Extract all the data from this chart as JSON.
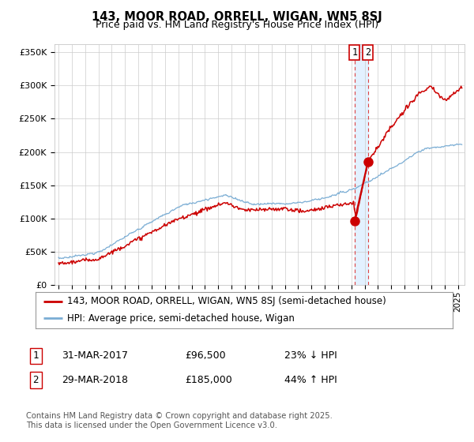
{
  "title": "143, MOOR ROAD, ORRELL, WIGAN, WN5 8SJ",
  "subtitle": "Price paid vs. HM Land Registry's House Price Index (HPI)",
  "ylabel_ticks": [
    "£0",
    "£50K",
    "£100K",
    "£150K",
    "£200K",
    "£250K",
    "£300K",
    "£350K"
  ],
  "ytick_vals": [
    0,
    50000,
    100000,
    150000,
    200000,
    250000,
    300000,
    350000
  ],
  "ylim": [
    0,
    362000
  ],
  "xlim_start": 1994.7,
  "xlim_end": 2025.5,
  "red_color": "#cc0000",
  "blue_color": "#7aadd4",
  "marker1_x": 2017.24,
  "marker2_x": 2018.24,
  "marker1_price": 96500,
  "marker2_price": 185000,
  "legend_label1": "143, MOOR ROAD, ORRELL, WIGAN, WN5 8SJ (semi-detached house)",
  "legend_label2": "HPI: Average price, semi-detached house, Wigan",
  "table_row1": [
    "1",
    "31-MAR-2017",
    "£96,500",
    "23% ↓ HPI"
  ],
  "table_row2": [
    "2",
    "29-MAR-2018",
    "£185,000",
    "44% ↑ HPI"
  ],
  "footnote": "Contains HM Land Registry data © Crown copyright and database right 2025.\nThis data is licensed under the Open Government Licence v3.0.",
  "background_color": "#ffffff",
  "grid_color": "#cccccc",
  "shade_color": "#ddeeff"
}
